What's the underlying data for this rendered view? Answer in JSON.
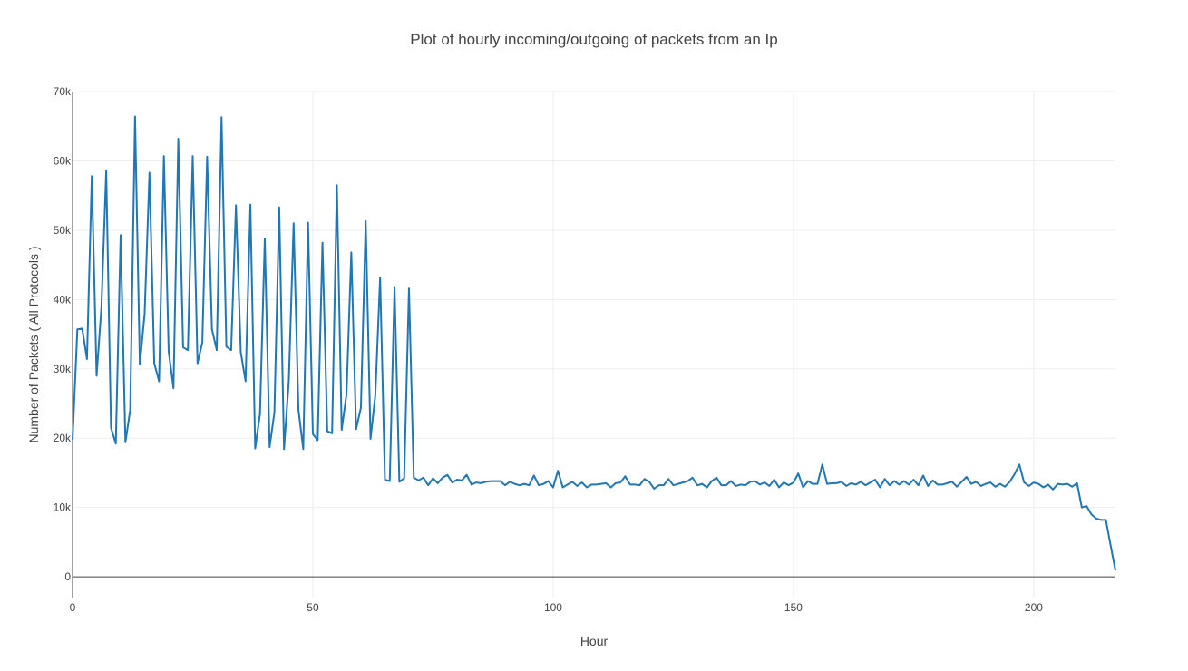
{
  "chart_data": {
    "type": "line",
    "title": "Plot of hourly incoming/outgoing of packets from an Ip",
    "xlabel": "Hour",
    "ylabel": "Number of Packets ( All Protocols )",
    "xlim": [
      0,
      217
    ],
    "ylim": [
      -3000,
      70000
    ],
    "x_ticks": [
      0,
      50,
      100,
      150,
      200
    ],
    "x_tick_labels": [
      "0",
      "50",
      "100",
      "150",
      "200"
    ],
    "y_ticks": [
      0,
      10000,
      20000,
      30000,
      40000,
      50000,
      60000,
      70000
    ],
    "y_tick_labels": [
      "0",
      "10k",
      "20k",
      "30k",
      "40k",
      "50k",
      "60k",
      "70k"
    ],
    "grid": true,
    "legend": "none",
    "color": "#1f77b4",
    "series": [
      {
        "x": [
          0,
          1,
          2,
          3,
          4,
          5,
          6,
          7,
          8,
          9,
          10,
          11,
          12,
          13,
          14,
          15,
          16,
          17,
          18,
          19,
          20,
          21,
          22,
          23,
          24,
          25,
          26,
          27,
          28,
          29,
          30,
          31,
          32,
          33,
          34,
          35,
          36,
          37,
          38,
          39,
          40,
          41,
          42,
          43,
          44,
          45,
          46,
          47,
          48,
          49,
          50,
          51,
          52,
          53,
          54,
          55,
          56,
          57,
          58,
          59,
          60,
          61,
          62,
          63,
          64,
          65,
          66,
          67,
          68,
          69,
          70,
          71,
          72,
          73,
          74,
          75,
          76,
          77,
          78,
          79,
          80,
          81,
          82,
          83,
          84,
          85,
          86,
          87,
          88,
          89,
          90,
          91,
          92,
          93,
          94,
          95,
          96,
          97,
          98,
          99,
          100,
          101,
          102,
          103,
          104,
          105,
          106,
          107,
          108,
          109,
          110,
          111,
          112,
          113,
          114,
          115,
          116,
          117,
          118,
          119,
          120,
          121,
          122,
          123,
          124,
          125,
          126,
          127,
          128,
          129,
          130,
          131,
          132,
          133,
          134,
          135,
          136,
          137,
          138,
          139,
          140,
          141,
          142,
          143,
          144,
          145,
          146,
          147,
          148,
          149,
          150,
          151,
          152,
          153,
          154,
          155,
          156,
          157,
          158,
          159,
          160,
          161,
          162,
          163,
          164,
          165,
          166,
          167,
          168,
          169,
          170,
          171,
          172,
          173,
          174,
          175,
          176,
          177,
          178,
          179,
          180,
          181,
          182,
          183,
          184,
          185,
          186,
          187,
          188,
          189,
          190,
          191,
          192,
          193,
          194,
          195,
          196,
          197,
          198,
          199,
          200,
          201,
          202,
          203,
          204,
          205,
          206,
          207,
          208,
          209,
          210,
          211,
          212,
          213,
          214,
          215,
          216,
          217
        ],
        "y": [
          19800,
          35700,
          35800,
          31400,
          57800,
          29000,
          38800,
          58600,
          21500,
          19200,
          49300,
          19400,
          24100,
          66400,
          30600,
          38000,
          58300,
          30800,
          28200,
          60700,
          32500,
          27200,
          63200,
          33100,
          32700,
          60700,
          30800,
          33800,
          60600,
          35700,
          32700,
          66300,
          33200,
          32700,
          53600,
          32400,
          28200,
          53700,
          18500,
          23500,
          48800,
          18700,
          23700,
          53300,
          18400,
          28300,
          51000,
          24100,
          18400,
          51100,
          20600,
          19700,
          48200,
          21000,
          20700,
          56500,
          21200,
          26300,
          46800,
          21300,
          24400,
          51300,
          19900,
          26200,
          43200,
          14000,
          13800,
          41800,
          13700,
          14200,
          41600,
          14300,
          13900,
          14300,
          13200,
          14200,
          13500,
          14300,
          14700,
          13600,
          14000,
          13900,
          14700,
          13300,
          13600,
          13500,
          13700,
          13800,
          13800,
          13800,
          13200,
          13700,
          13400,
          13200,
          13400,
          13200,
          14600,
          13200,
          13400,
          13800,
          12900,
          15300,
          12900,
          13300,
          13700,
          13100,
          13600,
          12900,
          13300,
          13300,
          13400,
          13500,
          12900,
          13500,
          13600,
          14500,
          13300,
          13300,
          13200,
          14100,
          13700,
          12700,
          13200,
          13200,
          14100,
          13200,
          13400,
          13600,
          13800,
          14300,
          13200,
          13400,
          12900,
          13800,
          14300,
          13200,
          13200,
          13800,
          13100,
          13300,
          13200,
          13700,
          13800,
          13300,
          13600,
          13100,
          14000,
          12900,
          13600,
          13200,
          13600,
          14900,
          12900,
          13800,
          13400,
          13400,
          16200,
          13400,
          13500,
          13500,
          13700,
          13100,
          13500,
          13300,
          13700,
          13200,
          13600,
          14000,
          12900,
          14100,
          13200,
          13800,
          13300,
          13800,
          13300,
          14000,
          13200,
          14600,
          13100,
          13900,
          13300,
          13300,
          13500,
          13700,
          13000,
          13700,
          14400,
          13400,
          13700,
          13100,
          13400,
          13600,
          13000,
          13400,
          13000,
          13700,
          14800,
          16200,
          13600,
          13100,
          13600,
          13400,
          12900,
          13300,
          12600,
          13400,
          13300,
          13400,
          13000,
          13500,
          10000,
          10200,
          9000,
          8400,
          8200,
          8200,
          4500,
          900
        ]
      }
    ]
  }
}
